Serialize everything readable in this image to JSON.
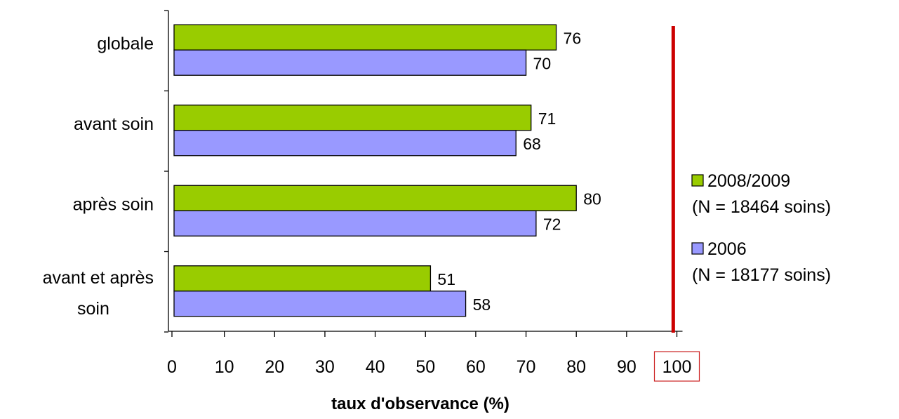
{
  "chart_data": {
    "type": "bar",
    "orientation": "horizontal",
    "categories": [
      [
        "globale"
      ],
      [
        "avant soin"
      ],
      [
        "après soin"
      ],
      [
        "avant et après",
        "soin"
      ]
    ],
    "series": [
      {
        "name": "2008/2009",
        "name_sub": "(N = 18464 soins)",
        "color": "#99cc00",
        "values": [
          76,
          71,
          80,
          51
        ]
      },
      {
        "name": "2006",
        "name_sub": "(N = 18177 soins)",
        "color": "#9999ff",
        "values": [
          70,
          68,
          72,
          58
        ]
      }
    ],
    "xlabel": "taux d'observance (%)",
    "xlim": [
      0,
      100
    ],
    "xticks": [
      0,
      10,
      20,
      30,
      40,
      50,
      60,
      70,
      80,
      90,
      100
    ],
    "highlighted_tick": 100,
    "reference_line": {
      "x": 99,
      "color": "#cc0000"
    },
    "grid": false,
    "legend_position": "right"
  }
}
